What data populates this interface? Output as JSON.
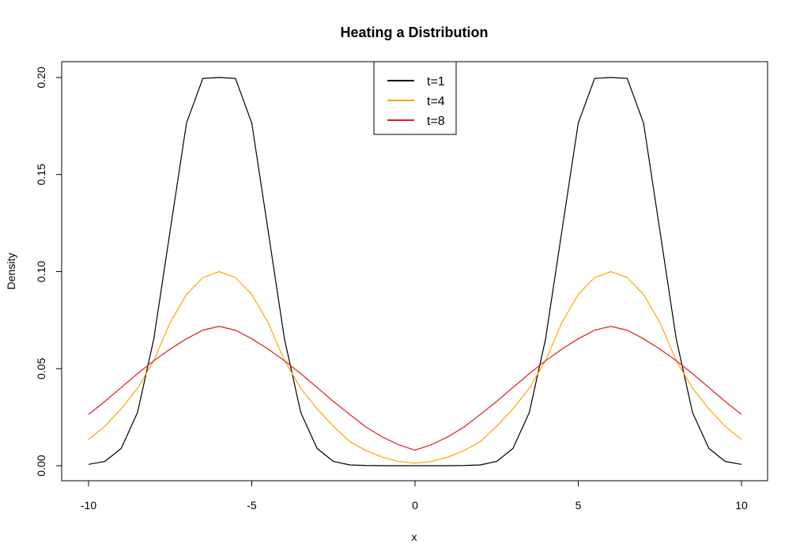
{
  "chart_data": {
    "type": "line",
    "title": "Heating a Distribution",
    "xlabel": "x",
    "ylabel": "Density",
    "xlim": [
      -10,
      10
    ],
    "ylim": [
      0,
      0.2
    ],
    "x_ticks": [
      -10,
      -5,
      0,
      5,
      10
    ],
    "x_tick_labels": [
      "-10",
      "-5",
      "0",
      "5",
      "10"
    ],
    "y_ticks": [
      0,
      0.05,
      0.1,
      0.15,
      0.2
    ],
    "y_tick_labels": [
      "0.00",
      "0.05",
      "0.10",
      "0.15",
      "0.20"
    ],
    "grid": false,
    "legend_position": "top-center",
    "x": [
      -10,
      -9.5,
      -9,
      -8.5,
      -8,
      -7.5,
      -7,
      -6.5,
      -6,
      -5.5,
      -5,
      -4.5,
      -4,
      -3.5,
      -3,
      -2.5,
      -2,
      -1.5,
      -1,
      -0.5,
      0,
      0.5,
      1,
      1.5,
      2,
      2.5,
      3,
      3.5,
      4,
      4.5,
      5,
      5.5,
      6,
      6.5,
      7,
      7.5,
      8,
      8.5,
      9,
      9.5,
      10
    ],
    "series": [
      {
        "name": "t=1",
        "color": "#000000",
        "values": [
          0.0007,
          0.0022,
          0.0089,
          0.0274,
          0.0654,
          0.1211,
          0.1765,
          0.1995,
          0.2,
          0.1995,
          0.1765,
          0.1211,
          0.0654,
          0.0274,
          0.0089,
          0.0022,
          0.0004,
          0.0001,
          0.0,
          0.0,
          0.0,
          0.0,
          0.0,
          0.0001,
          0.0004,
          0.0022,
          0.0089,
          0.0274,
          0.0654,
          0.1211,
          0.1765,
          0.1995,
          0.2,
          0.1995,
          0.1765,
          0.1211,
          0.0654,
          0.0274,
          0.0089,
          0.0022,
          0.0007
        ]
      },
      {
        "name": "t=4",
        "color": "#FFA500",
        "values": [
          0.0135,
          0.0203,
          0.0293,
          0.0399,
          0.0542,
          0.0738,
          0.0882,
          0.0969,
          0.1,
          0.0969,
          0.0882,
          0.0738,
          0.0542,
          0.0399,
          0.0293,
          0.0203,
          0.0124,
          0.0078,
          0.0044,
          0.0022,
          0.0013,
          0.0022,
          0.0044,
          0.0078,
          0.0124,
          0.0203,
          0.0293,
          0.0399,
          0.0542,
          0.0738,
          0.0882,
          0.0969,
          0.1,
          0.0969,
          0.0882,
          0.0738,
          0.0542,
          0.0399,
          0.0293,
          0.0203,
          0.0135
        ]
      },
      {
        "name": "t=8",
        "color": "#E41A1C",
        "values": [
          0.0264,
          0.0331,
          0.0403,
          0.0474,
          0.0541,
          0.0601,
          0.0654,
          0.0698,
          0.0718,
          0.0698,
          0.0654,
          0.0601,
          0.0541,
          0.0474,
          0.0403,
          0.0331,
          0.0264,
          0.0199,
          0.0148,
          0.0108,
          0.008,
          0.0108,
          0.0148,
          0.0199,
          0.0264,
          0.0331,
          0.0403,
          0.0474,
          0.0541,
          0.0601,
          0.0654,
          0.0698,
          0.0718,
          0.0698,
          0.0654,
          0.0601,
          0.0541,
          0.0474,
          0.0403,
          0.0331,
          0.0264
        ]
      }
    ]
  }
}
